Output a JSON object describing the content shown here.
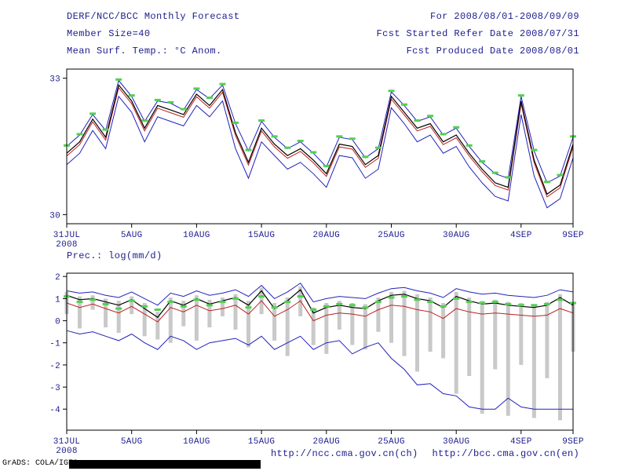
{
  "colors": {
    "text": "#1c1c8e",
    "axis": "#000000",
    "background": "#ffffff"
  },
  "header": {
    "left_lines": [
      "DERF/NCC/BCC Monthly Forecast",
      "Member Size=40",
      "Mean Surf. Temp.: °C Anom."
    ],
    "right_lines": [
      "For 2008/08/01-2008/09/09",
      "Fcst Started Refer Date 2008/07/31",
      "Fcst Produced Date 2008/08/01"
    ]
  },
  "labels": {
    "prec_title": "Prec.: log(mm/d)",
    "url_ch": "http://ncc.cma.gov.cn(ch)",
    "url_en": "http://bcc.cma.gov.cn(en)",
    "credit": "GrADS: COLA/IGES"
  },
  "chart_data": [
    {
      "type": "line",
      "title": "Mean Surf. Temp.: °C Anom.",
      "xlabel": "",
      "ylabel": "",
      "x": {
        "n": 40,
        "tick_indices": [
          0,
          5,
          10,
          15,
          20,
          25,
          30,
          35,
          39
        ],
        "tick_labels": [
          "31JUL",
          "5AUG",
          "10AUG",
          "15AUG",
          "20AUG",
          "25AUG",
          "30AUG",
          "4SEP",
          "9SEP"
        ],
        "year_label": "2008"
      },
      "ylim": [
        29.8,
        33.2
      ],
      "yticks": [
        {
          "value": 33,
          "label": "33"
        },
        {
          "value": 30,
          "label": "30"
        }
      ],
      "grid": false,
      "legend": "none",
      "series": [
        {
          "name": "upper-envelope-line",
          "style": "line",
          "color": "#2222bb",
          "width": 1,
          "values": [
            31.5,
            31.75,
            32.2,
            31.85,
            32.95,
            32.6,
            32.05,
            32.5,
            32.45,
            32.3,
            32.75,
            32.55,
            32.85,
            32.0,
            31.4,
            32.05,
            31.7,
            31.45,
            31.6,
            31.35,
            31.05,
            31.7,
            31.65,
            31.25,
            31.45,
            32.7,
            32.4,
            32.05,
            32.15,
            31.75,
            31.9,
            31.5,
            31.15,
            30.9,
            30.8,
            32.6,
            31.4,
            30.7,
            30.85,
            31.7
          ]
        },
        {
          "name": "lower-envelope-line",
          "style": "line",
          "color": "#2222bb",
          "width": 1,
          "values": [
            31.1,
            31.35,
            31.85,
            31.45,
            32.6,
            32.25,
            31.6,
            32.15,
            32.05,
            31.95,
            32.4,
            32.15,
            32.5,
            31.45,
            30.8,
            31.6,
            31.3,
            31.0,
            31.15,
            30.9,
            30.6,
            31.3,
            31.25,
            30.8,
            31.0,
            32.35,
            32.0,
            31.6,
            31.75,
            31.35,
            31.5,
            31.05,
            30.7,
            30.4,
            30.3,
            32.2,
            30.85,
            30.15,
            30.35,
            31.25
          ]
        },
        {
          "name": "control-line",
          "style": "line",
          "color": "#bb2222",
          "width": 1,
          "values": [
            31.29,
            31.54,
            32.04,
            31.64,
            32.79,
            32.44,
            31.84,
            32.34,
            32.24,
            32.14,
            32.59,
            32.34,
            32.69,
            31.74,
            31.09,
            31.84,
            31.49,
            31.24,
            31.39,
            31.14,
            30.84,
            31.49,
            31.44,
            31.04,
            31.24,
            32.54,
            32.19,
            31.84,
            31.94,
            31.54,
            31.69,
            31.29,
            30.94,
            30.64,
            30.54,
            32.44,
            31.14,
            30.39,
            30.59,
            31.49
          ]
        },
        {
          "name": "mean-line",
          "style": "line",
          "color": "#000000",
          "width": 1.2,
          "values": [
            31.35,
            31.6,
            32.1,
            31.7,
            32.85,
            32.5,
            31.9,
            32.4,
            32.3,
            32.2,
            32.65,
            32.4,
            32.75,
            31.8,
            31.15,
            31.9,
            31.55,
            31.3,
            31.45,
            31.2,
            30.9,
            31.55,
            31.5,
            31.1,
            31.3,
            32.6,
            32.25,
            31.9,
            32.0,
            31.6,
            31.75,
            31.35,
            31.0,
            30.7,
            30.6,
            32.5,
            31.2,
            30.45,
            30.65,
            31.55
          ]
        },
        {
          "name": "green-dash-marker",
          "style": "dash",
          "color": "#52d052",
          "width": 3,
          "values": [
            31.52,
            31.77,
            32.22,
            31.87,
            32.97,
            32.62,
            32.07,
            32.52,
            32.47,
            32.32,
            32.77,
            32.57,
            32.87,
            32.02,
            31.42,
            32.07,
            31.72,
            31.47,
            31.62,
            31.37,
            31.07,
            31.72,
            31.67,
            31.27,
            31.47,
            32.72,
            32.42,
            32.07,
            32.17,
            31.77,
            31.92,
            31.52,
            31.17,
            30.92,
            30.82,
            32.62,
            31.42,
            30.72,
            30.87,
            31.72
          ]
        }
      ]
    },
    {
      "type": "line",
      "title": "Prec.: log(mm/d)",
      "xlabel": "",
      "ylabel": "",
      "x": {
        "n": 40,
        "tick_indices": [
          0,
          5,
          10,
          15,
          20,
          25,
          30,
          35,
          39
        ],
        "tick_labels": [
          "31JUL",
          "5AUG",
          "10AUG",
          "15AUG",
          "20AUG",
          "25AUG",
          "30AUG",
          "4SEP",
          "9SEP"
        ],
        "year_label": "2008"
      },
      "ylim": [
        -4.95,
        2.15
      ],
      "yticks": [
        {
          "value": 2,
          "label": "2"
        },
        {
          "value": 1,
          "label": "1"
        },
        {
          "value": 0,
          "label": "0"
        },
        {
          "value": -1,
          "label": "-1"
        },
        {
          "value": -2,
          "label": "-2"
        },
        {
          "value": -3,
          "label": "-3"
        },
        {
          "value": -4,
          "label": "-4"
        }
      ],
      "grid": false,
      "legend": "none",
      "bars": {
        "name": "spread-bar",
        "color": "#c9c9c9",
        "ranges": [
          [
            1.3,
            0.3
          ],
          [
            1.1,
            -0.35
          ],
          [
            1.15,
            0.5
          ],
          [
            1.0,
            -0.3
          ],
          [
            0.9,
            -0.55
          ],
          [
            1.1,
            0.3
          ],
          [
            0.8,
            -0.7
          ],
          [
            0.4,
            -0.85
          ],
          [
            1.05,
            -1.0
          ],
          [
            0.9,
            -0.25
          ],
          [
            1.15,
            -0.9
          ],
          [
            0.95,
            -0.3
          ],
          [
            1.05,
            0.2
          ],
          [
            1.2,
            -0.4
          ],
          [
            0.9,
            -1.2
          ],
          [
            1.5,
            0.3
          ],
          [
            0.8,
            -0.9
          ],
          [
            1.05,
            -1.6
          ],
          [
            1.55,
            0.2
          ],
          [
            0.6,
            -1.1
          ],
          [
            0.8,
            -1.5
          ],
          [
            0.9,
            -0.4
          ],
          [
            0.8,
            -1.1
          ],
          [
            0.75,
            -1.3
          ],
          [
            1.05,
            -0.5
          ],
          [
            1.3,
            -1.0
          ],
          [
            1.35,
            -1.6
          ],
          [
            1.2,
            -2.3
          ],
          [
            1.05,
            -1.4
          ],
          [
            0.8,
            -1.7
          ],
          [
            1.3,
            -3.3
          ],
          [
            1.05,
            -2.5
          ],
          [
            0.9,
            -4.2
          ],
          [
            0.95,
            -2.2
          ],
          [
            0.85,
            -4.3
          ],
          [
            0.8,
            -2.0
          ],
          [
            0.75,
            -4.4
          ],
          [
            0.85,
            -2.6
          ],
          [
            1.2,
            -4.5
          ],
          [
            0.85,
            -1.4
          ]
        ]
      },
      "series": [
        {
          "name": "upper-envelope-line",
          "style": "line",
          "color": "#2222bb",
          "width": 1,
          "values": [
            1.35,
            1.25,
            1.3,
            1.15,
            1.05,
            1.3,
            1.0,
            0.7,
            1.25,
            1.1,
            1.35,
            1.15,
            1.25,
            1.4,
            1.1,
            1.6,
            1.0,
            1.3,
            1.7,
            0.85,
            1.0,
            1.1,
            1.05,
            1.0,
            1.25,
            1.45,
            1.5,
            1.35,
            1.25,
            1.05,
            1.45,
            1.3,
            1.2,
            1.25,
            1.15,
            1.1,
            1.05,
            1.15,
            1.4,
            1.3
          ]
        },
        {
          "name": "lower-envelope-line",
          "style": "line",
          "color": "#2222bb",
          "width": 1,
          "values": [
            -0.45,
            -0.6,
            -0.5,
            -0.7,
            -0.9,
            -0.6,
            -1.0,
            -1.3,
            -0.7,
            -0.9,
            -1.3,
            -1.0,
            -0.9,
            -0.8,
            -1.1,
            -0.7,
            -1.3,
            -1.0,
            -0.7,
            -1.3,
            -1.0,
            -0.9,
            -1.5,
            -1.2,
            -1.0,
            -1.7,
            -2.2,
            -2.9,
            -2.85,
            -3.3,
            -3.4,
            -3.9,
            -4.0,
            -4.0,
            -3.5,
            -3.9,
            -4.0,
            -4.0,
            -4.0,
            -4.0
          ]
        },
        {
          "name": "control-line",
          "style": "line",
          "color": "#bb2222",
          "width": 1,
          "values": [
            0.8,
            0.6,
            0.75,
            0.55,
            0.35,
            0.65,
            0.3,
            -0.05,
            0.6,
            0.4,
            0.7,
            0.45,
            0.55,
            0.7,
            0.3,
            0.9,
            0.2,
            0.5,
            0.9,
            0.0,
            0.25,
            0.35,
            0.3,
            0.2,
            0.5,
            0.7,
            0.65,
            0.5,
            0.4,
            0.1,
            0.55,
            0.4,
            0.3,
            0.35,
            0.3,
            0.25,
            0.2,
            0.25,
            0.55,
            0.35
          ]
        },
        {
          "name": "mean-line",
          "style": "line",
          "color": "#000000",
          "width": 1.2,
          "values": [
            1.15,
            0.95,
            1.0,
            0.85,
            0.7,
            0.95,
            0.55,
            0.15,
            0.9,
            0.7,
            1.0,
            0.75,
            0.9,
            1.05,
            0.7,
            1.35,
            0.55,
            0.9,
            1.4,
            0.35,
            0.6,
            0.7,
            0.6,
            0.55,
            0.9,
            1.15,
            1.2,
            1.0,
            0.9,
            0.6,
            1.1,
            0.9,
            0.75,
            0.8,
            0.7,
            0.65,
            0.6,
            0.7,
            1.05,
            0.7
          ]
        },
        {
          "name": "green-dash-marker",
          "style": "dash",
          "color": "#52d052",
          "width": 3,
          "values": [
            1.1,
            0.85,
            0.95,
            0.75,
            0.55,
            0.9,
            0.65,
            0.5,
            0.85,
            0.65,
            0.95,
            0.7,
            0.85,
            1.0,
            0.6,
            1.1,
            0.6,
            0.85,
            1.1,
            0.5,
            0.65,
            0.75,
            0.7,
            0.6,
            0.85,
            1.05,
            1.1,
            0.95,
            0.85,
            0.65,
            1.0,
            0.85,
            0.8,
            0.85,
            0.75,
            0.7,
            0.7,
            0.75,
            0.95,
            0.8
          ]
        }
      ]
    }
  ]
}
